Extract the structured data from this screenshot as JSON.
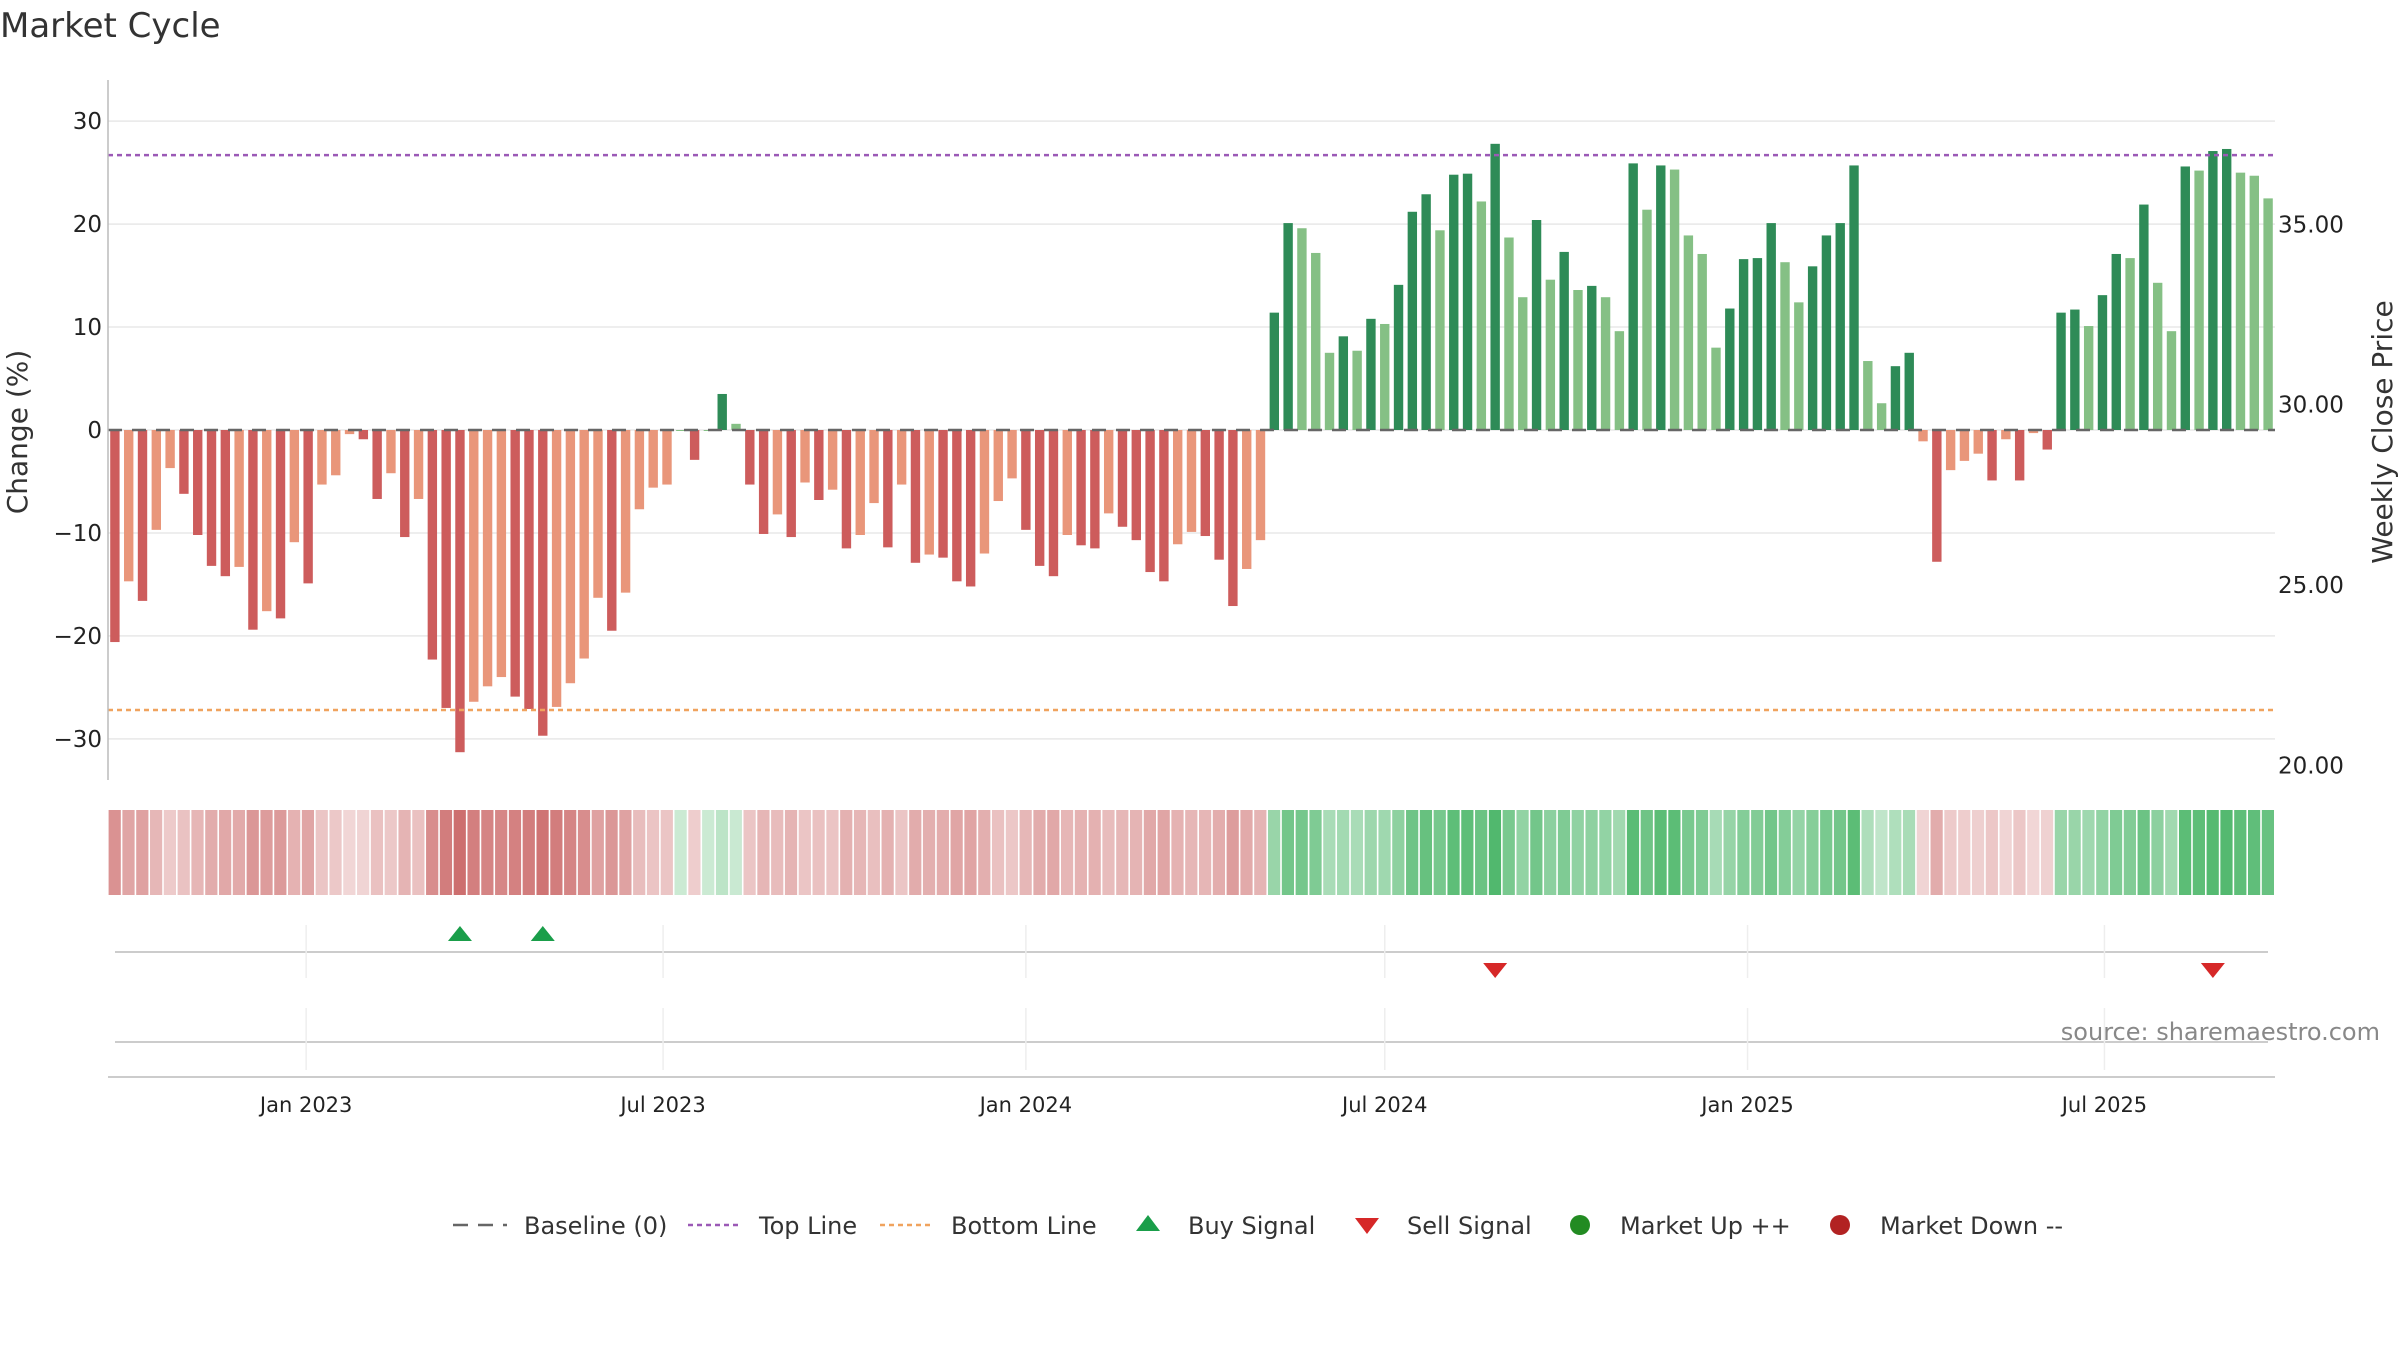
{
  "chart_data": {
    "type": "bar",
    "title": "Market Cycle",
    "ylabel": "Change (%)",
    "y2label": "Weekly Close Price",
    "ylim": [
      -34,
      34
    ],
    "y2lim": [
      19.6,
      39.0
    ],
    "yticks": [
      -30,
      -20,
      -10,
      0,
      10,
      20,
      30
    ],
    "y2ticks": [
      "20.00",
      "25.00",
      "30.00",
      "35.00"
    ],
    "top_line": 26.7,
    "bottom_line": -27.2,
    "x_start": "2022-09-26",
    "week_step_days": 7,
    "month_ticks": [
      {
        "date": "2023-01-01",
        "label": "Jan 2023"
      },
      {
        "date": "2023-07-01",
        "label": "Jul 2023"
      },
      {
        "date": "2024-01-01",
        "label": "Jan 2024"
      },
      {
        "date": "2024-07-01",
        "label": "Jul 2024"
      },
      {
        "date": "2025-01-01",
        "label": "Jan 2025"
      },
      {
        "date": "2025-07-01",
        "label": "Jul 2025"
      }
    ],
    "values": [
      -20.6,
      -14.7,
      -16.6,
      -9.7,
      -3.7,
      -6.2,
      -10.2,
      -13.2,
      -14.2,
      -13.3,
      -19.4,
      -17.6,
      -18.3,
      -10.9,
      -14.9,
      -5.3,
      -4.4,
      -0.4,
      -0.9,
      -6.7,
      -4.2,
      -10.4,
      -6.7,
      -22.3,
      -27.0,
      -31.3,
      -26.4,
      -24.9,
      -24.0,
      -25.9,
      -27.1,
      -29.7,
      -26.9,
      -24.6,
      -22.2,
      -16.3,
      -19.5,
      -15.8,
      -7.7,
      -5.6,
      -5.3,
      0.0,
      -2.9,
      0.0,
      3.5,
      0.6,
      -5.3,
      -10.1,
      -8.2,
      -10.4,
      -5.1,
      -6.8,
      -5.8,
      -11.5,
      -10.2,
      -7.1,
      -11.4,
      -5.3,
      -12.9,
      -12.1,
      -12.4,
      -14.7,
      -15.2,
      -12.0,
      -6.9,
      -4.7,
      -9.7,
      -13.2,
      -14.2,
      -10.2,
      -11.2,
      -11.5,
      -8.1,
      -9.4,
      -10.7,
      -13.8,
      -14.7,
      -11.1,
      -9.9,
      -10.3,
      -12.6,
      -17.1,
      -13.5,
      -10.7,
      11.4,
      20.1,
      19.6,
      17.2,
      7.5,
      9.1,
      7.7,
      10.8,
      10.3,
      14.1,
      21.2,
      22.9,
      19.4,
      24.8,
      24.9,
      22.2,
      27.8,
      18.7,
      12.9,
      20.4,
      14.6,
      17.3,
      13.6,
      14.0,
      12.9,
      9.6,
      25.9,
      21.4,
      25.7,
      25.3,
      18.9,
      17.1,
      8.0,
      11.8,
      16.6,
      16.7,
      20.1,
      16.3,
      12.4,
      15.9,
      18.9,
      20.1,
      25.7,
      6.7,
      2.6,
      6.2,
      7.5,
      -1.1,
      -12.8,
      -3.9,
      -3.0,
      -2.3,
      -4.9,
      -0.9,
      -4.9,
      -0.3,
      -1.9,
      11.4,
      11.7,
      10.1,
      13.1,
      17.1,
      16.7,
      21.9,
      14.3,
      9.6,
      25.6,
      25.2,
      27.1,
      27.3,
      25.0,
      24.7,
      22.5
    ],
    "signals": [
      {
        "type": "buy",
        "index": 25
      },
      {
        "type": "buy",
        "index": 31
      },
      {
        "type": "sell",
        "index": 100
      },
      {
        "type": "sell",
        "index": 152
      }
    ],
    "legend": [
      {
        "key": "baseline",
        "label": "Baseline (0)"
      },
      {
        "key": "top",
        "label": "Top Line"
      },
      {
        "key": "bottom",
        "label": "Bottom Line"
      },
      {
        "key": "buy",
        "label": "Buy Signal"
      },
      {
        "key": "sell",
        "label": "Sell Signal"
      },
      {
        "key": "up",
        "label": "Market Up ++"
      },
      {
        "key": "down",
        "label": "Market Down --"
      }
    ],
    "legend_position": "bottom-center",
    "grid": true,
    "source": "source: sharemaestro.com"
  },
  "colors": {
    "bar_up_strong": "#2e8b57",
    "bar_up_light": "#85c085",
    "bar_down_strong": "#cd5c5c",
    "bar_down_light": "#e9967a",
    "top_line": "#9b59b6",
    "bottom_line": "#f0a35e",
    "buy": "#1a9e4a",
    "sell": "#d62828",
    "market_up": "#228b22",
    "market_down": "#b22222",
    "grid": "#e8e8e8",
    "baseline": "#666666"
  }
}
